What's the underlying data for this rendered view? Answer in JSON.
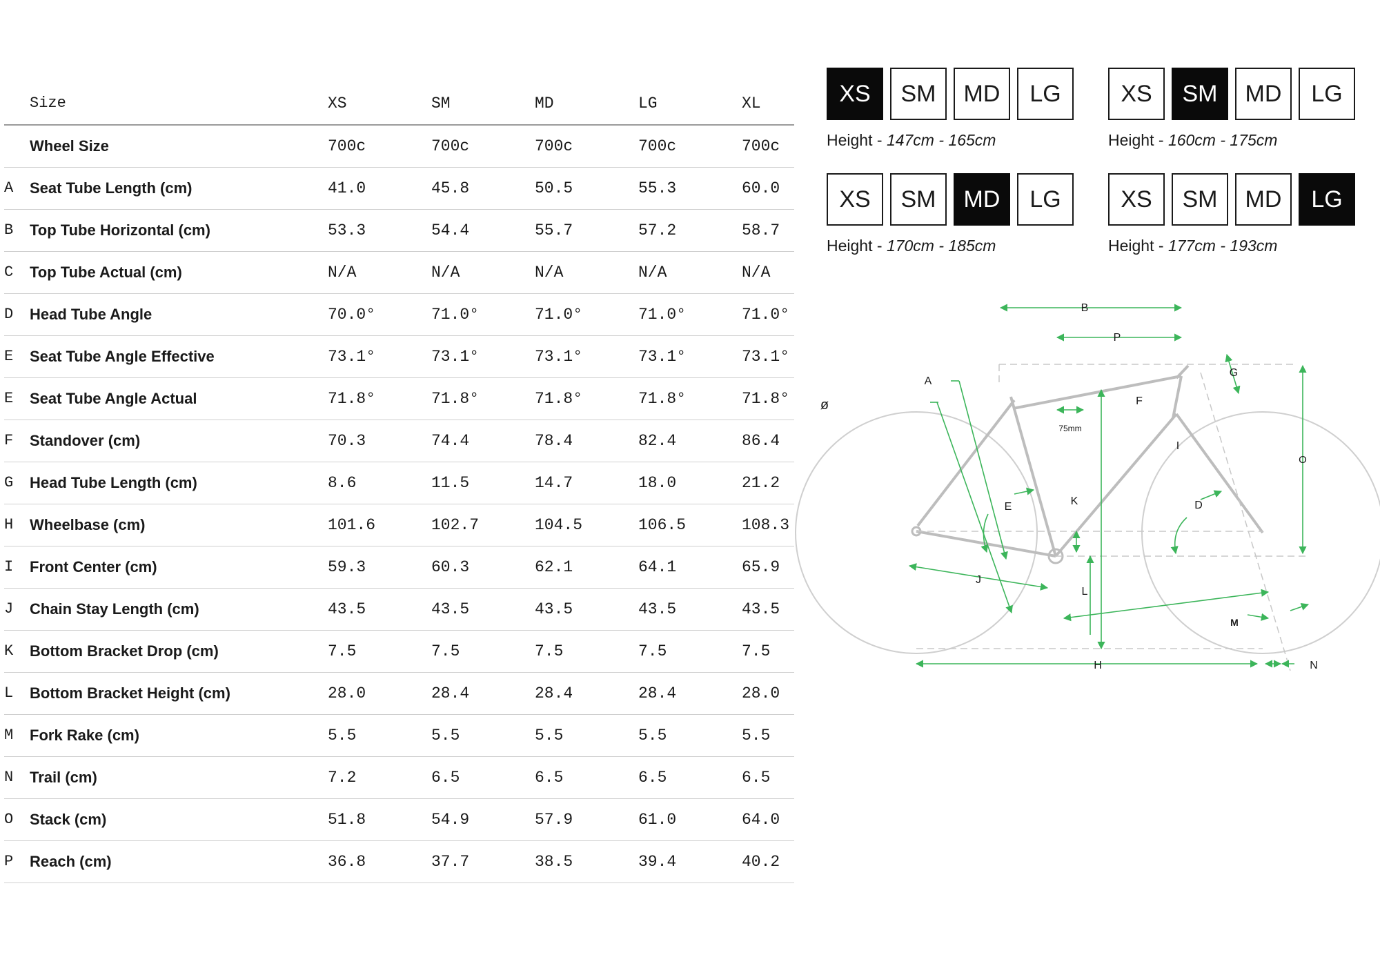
{
  "table": {
    "size_label": "Size",
    "columns": [
      "XS",
      "SM",
      "MD",
      "LG",
      "XL"
    ],
    "rows": [
      {
        "letter": "",
        "label": "Wheel Size",
        "values": [
          "700c",
          "700c",
          "700c",
          "700c",
          "700c"
        ]
      },
      {
        "letter": "A",
        "label": "Seat Tube Length (cm)",
        "values": [
          "41.0",
          "45.8",
          "50.5",
          "55.3",
          "60.0"
        ]
      },
      {
        "letter": "B",
        "label": "Top Tube Horizontal (cm)",
        "values": [
          "53.3",
          "54.4",
          "55.7",
          "57.2",
          "58.7"
        ]
      },
      {
        "letter": "C",
        "label": "Top Tube Actual (cm)",
        "values": [
          "N/A",
          "N/A",
          "N/A",
          "N/A",
          "N/A"
        ]
      },
      {
        "letter": "D",
        "label": "Head Tube Angle",
        "values": [
          "70.0°",
          "71.0°",
          "71.0°",
          "71.0°",
          "71.0°"
        ]
      },
      {
        "letter": "E",
        "label": "Seat Tube Angle Effective",
        "values": [
          "73.1°",
          "73.1°",
          "73.1°",
          "73.1°",
          "73.1°"
        ]
      },
      {
        "letter": "E",
        "label": "Seat Tube Angle Actual",
        "values": [
          "71.8°",
          "71.8°",
          "71.8°",
          "71.8°",
          "71.8°"
        ]
      },
      {
        "letter": "F",
        "label": "Standover (cm)",
        "values": [
          "70.3",
          "74.4",
          "78.4",
          "82.4",
          "86.4"
        ]
      },
      {
        "letter": "G",
        "label": "Head Tube Length (cm)",
        "values": [
          "8.6",
          "11.5",
          "14.7",
          "18.0",
          "21.2"
        ]
      },
      {
        "letter": "H",
        "label": "Wheelbase (cm)",
        "values": [
          "101.6",
          "102.7",
          "104.5",
          "106.5",
          "108.3"
        ]
      },
      {
        "letter": "I",
        "label": "Front Center (cm)",
        "values": [
          "59.3",
          "60.3",
          "62.1",
          "64.1",
          "65.9"
        ]
      },
      {
        "letter": "J",
        "label": "Chain Stay Length (cm)",
        "values": [
          "43.5",
          "43.5",
          "43.5",
          "43.5",
          "43.5"
        ]
      },
      {
        "letter": "K",
        "label": "Bottom Bracket Drop (cm)",
        "values": [
          "7.5",
          "7.5",
          "7.5",
          "7.5",
          "7.5"
        ]
      },
      {
        "letter": "L",
        "label": "Bottom Bracket Height (cm)",
        "values": [
          "28.0",
          "28.4",
          "28.4",
          "28.4",
          "28.0"
        ]
      },
      {
        "letter": "M",
        "label": "Fork Rake (cm)",
        "values": [
          "5.5",
          "5.5",
          "5.5",
          "5.5",
          "5.5"
        ]
      },
      {
        "letter": "N",
        "label": "Trail (cm)",
        "values": [
          "7.2",
          "6.5",
          "6.5",
          "6.5",
          "6.5"
        ]
      },
      {
        "letter": "O",
        "label": "Stack (cm)",
        "values": [
          "51.8",
          "54.9",
          "57.9",
          "61.0",
          "64.0"
        ]
      },
      {
        "letter": "P",
        "label": "Reach (cm)",
        "values": [
          "36.8",
          "37.7",
          "38.5",
          "39.4",
          "40.2"
        ]
      }
    ]
  },
  "size_guide": {
    "sizes": [
      "XS",
      "SM",
      "MD",
      "LG"
    ],
    "height_label": "Height - ",
    "cards": [
      {
        "active": "XS",
        "range": "147cm - 165cm"
      },
      {
        "active": "SM",
        "range": "160cm - 175cm"
      },
      {
        "active": "MD",
        "range": "170cm - 185cm"
      },
      {
        "active": "LG",
        "range": "177cm - 193cm"
      }
    ]
  },
  "diagram": {
    "labels": {
      "A": "A",
      "B": "B",
      "D": "D",
      "E": "E",
      "F": "F",
      "G": "G",
      "H": "H",
      "I": "I",
      "J": "J",
      "K": "K",
      "L": "L",
      "M": "M",
      "N": "N",
      "O": "O",
      "P": "P",
      "wheel": "ø",
      "dim75": "75mm"
    },
    "colors": {
      "dimension": "#3cb55a",
      "frame": "#c4c4c4"
    }
  }
}
